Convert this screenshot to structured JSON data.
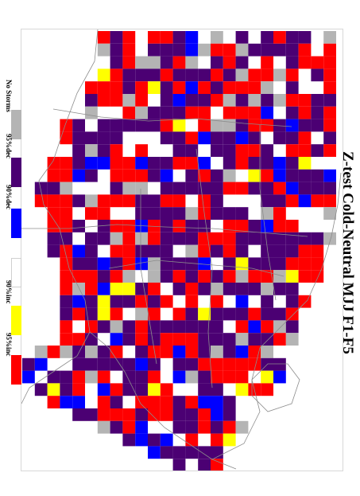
{
  "title": "Z-test Cold-Neutral MJJ F1-F5",
  "legend": {
    "items": [
      {
        "label": "No Storms",
        "color": "#b4b4b4",
        "name": "legend-no-storms"
      },
      {
        "label": "95%dec",
        "color": "#4b0073",
        "name": "legend-95-dec"
      },
      {
        "label": "90%dec",
        "color": "#0000ff",
        "name": "legend-90-dec"
      },
      {
        "label": "90%inc",
        "color": "#ffffff",
        "name": "legend-90-inc"
      },
      {
        "label": "95%inc",
        "color": "#ffff00",
        "name": "legend-95-inc"
      },
      {
        "label": "",
        "color": "#ff0000",
        "name": "legend-extra-red"
      }
    ]
  },
  "colors": {
    "no_storms": "#b4b4b4",
    "dec95": "#4b0073",
    "dec90": "#0000ff",
    "inc90": "#ffffff",
    "inc95": "#ffff00",
    "red": "#ff0000",
    "coast": "#8c8c8c"
  }
}
